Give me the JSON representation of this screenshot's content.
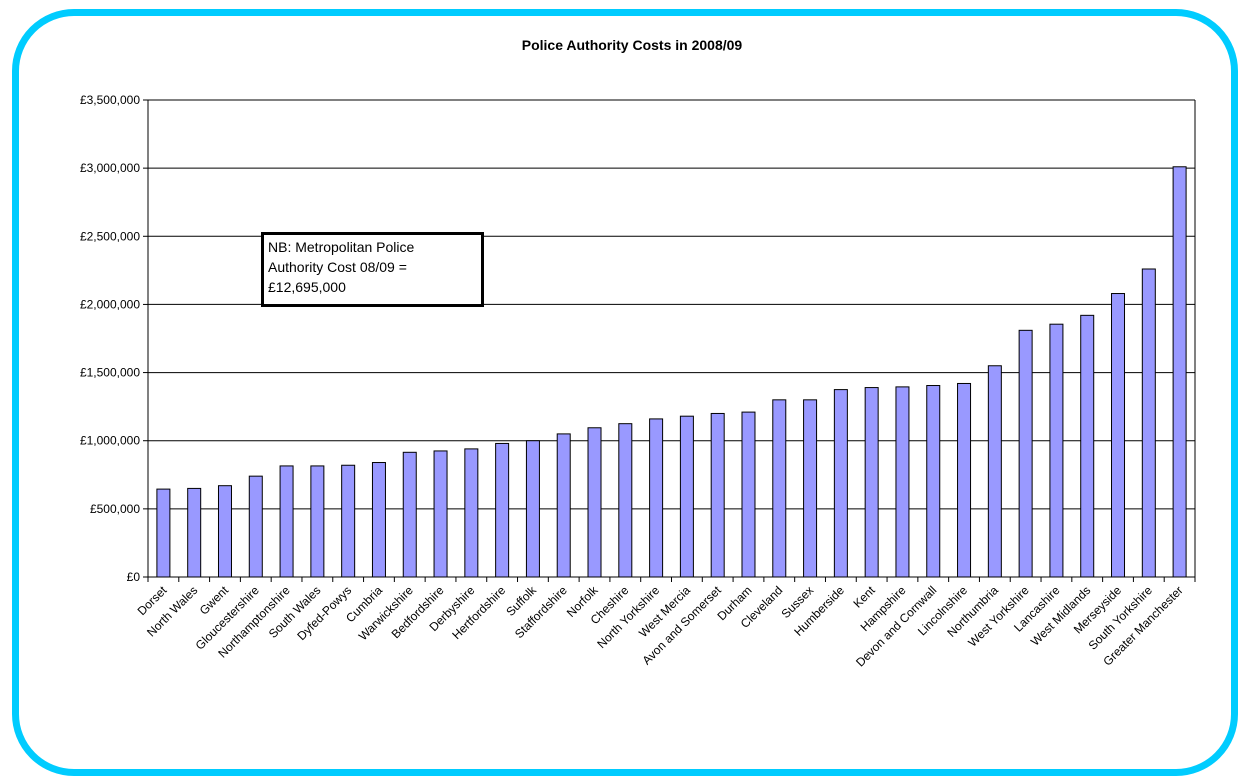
{
  "chart_data": {
    "type": "bar",
    "title": "Police Authority Costs in 2008/09",
    "xlabel": "",
    "ylabel": "",
    "ylim": [
      0,
      3500000
    ],
    "yticks": [
      0,
      500000,
      1000000,
      1500000,
      2000000,
      2500000,
      3000000,
      3500000
    ],
    "ytick_labels": [
      "£0",
      "£500,000",
      "£1,000,000",
      "£1,500,000",
      "£2,000,000",
      "£2,500,000",
      "£3,000,000",
      "£3,500,000"
    ],
    "grid": true,
    "bar_color": "#9999ff",
    "categories": [
      "Dorset",
      "North Wales",
      "Gwent",
      "Gloucestershire",
      "Northamptonshire",
      "South Wales",
      "Dyfed-Powys",
      "Cumbria",
      "Warwickshire",
      "Bedfordshire",
      "Derbyshire",
      "Hertfordshire",
      "Suffolk",
      "Staffordshire",
      "Norfolk",
      "Cheshire",
      "North Yorkshire",
      "West Mercia",
      "Avon and Somerset",
      "Durham",
      "Cleveland",
      "Sussex",
      "Humberside",
      "Kent",
      "Hampshire",
      "Devon and Cornwall",
      "Lincolnshire",
      "Northumbria",
      "West Yorkshire",
      "Lancashire",
      "West Midlands",
      "Merseyside",
      "South Yorkshire",
      "Greater Manchester"
    ],
    "values": [
      645000,
      650000,
      670000,
      740000,
      815000,
      815000,
      820000,
      840000,
      915000,
      925000,
      940000,
      980000,
      1000000,
      1050000,
      1095000,
      1125000,
      1160000,
      1180000,
      1200000,
      1210000,
      1300000,
      1300000,
      1375000,
      1390000,
      1395000,
      1405000,
      1420000,
      1550000,
      1810000,
      1855000,
      1920000,
      2080000,
      2260000,
      3010000
    ],
    "annotation": "NB: Metropolitan Police\nAuthority Cost 08/09 =\n£12,695,000"
  }
}
